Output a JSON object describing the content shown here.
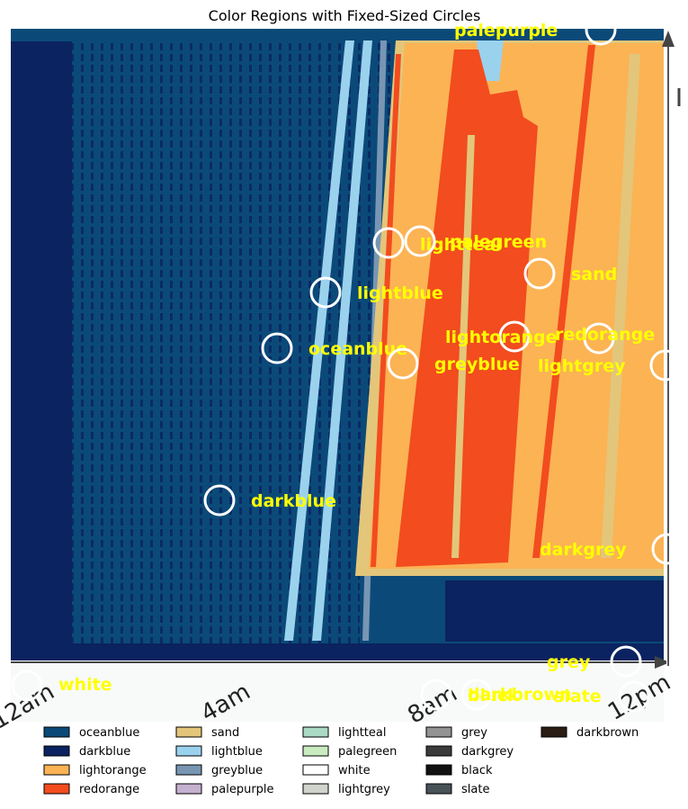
{
  "chart_data": {
    "type": "image-segmentation",
    "title": "Color Regions with Fixed-Sized Circles",
    "x_tick_labels": [
      "12am",
      "4am",
      "8am",
      "12pm"
    ],
    "palette": {
      "oceanblue": "#0b4a78",
      "darkblue": "#0b2360",
      "lightorange": "#fbb354",
      "redorange": "#f24c1f",
      "sand": "#e3c67a",
      "lightblue": "#9ad2ee",
      "greyblue": "#7896b4",
      "palepurple": "#c5b0cf",
      "lightteal": "#abdac4",
      "palegreen": "#c9ebc0",
      "white": "#ffffff",
      "lightgrey": "#d1d3cd",
      "grey": "#939393",
      "darkgrey": "#3b3b3b",
      "black": "#111111",
      "slate": "#475358",
      "darkbrown": "#2b1d13"
    },
    "legend": [
      {
        "name": "oceanblue",
        "color": "#0b4a78"
      },
      {
        "name": "darkblue",
        "color": "#0b2360"
      },
      {
        "name": "lightorange",
        "color": "#fbb354"
      },
      {
        "name": "redorange",
        "color": "#f24c1f"
      },
      {
        "name": "sand",
        "color": "#e3c67a"
      },
      {
        "name": "lightblue",
        "color": "#9ad2ee"
      },
      {
        "name": "greyblue",
        "color": "#7896b4"
      },
      {
        "name": "palepurple",
        "color": "#c5b0cf"
      },
      {
        "name": "lightteal",
        "color": "#abdac4"
      },
      {
        "name": "palegreen",
        "color": "#c9ebc0"
      },
      {
        "name": "white",
        "color": "#ffffff"
      },
      {
        "name": "lightgrey",
        "color": "#d1d3cd"
      },
      {
        "name": "grey",
        "color": "#939393"
      },
      {
        "name": "darkgrey",
        "color": "#3b3b3b"
      },
      {
        "name": "black",
        "color": "#111111"
      },
      {
        "name": "slate",
        "color": "#475358"
      },
      {
        "name": "darkbrown",
        "color": "#2b1d13"
      }
    ],
    "legend_columns": 5,
    "legend_placement": "bottom",
    "annotations": [
      {
        "label": "palepurple"
      },
      {
        "label": "lightteal"
      },
      {
        "label": "palegreen"
      },
      {
        "label": "sand"
      },
      {
        "label": "lightblue"
      },
      {
        "label": "lightorange"
      },
      {
        "label": "redorange"
      },
      {
        "label": "oceanblue"
      },
      {
        "label": "greyblue"
      },
      {
        "label": "lightgrey"
      },
      {
        "label": "darkblue"
      },
      {
        "label": "darkgrey"
      },
      {
        "label": "grey"
      },
      {
        "label": "white"
      },
      {
        "label": "black"
      },
      {
        "label": "darkbrown"
      },
      {
        "label": "slate"
      }
    ]
  }
}
